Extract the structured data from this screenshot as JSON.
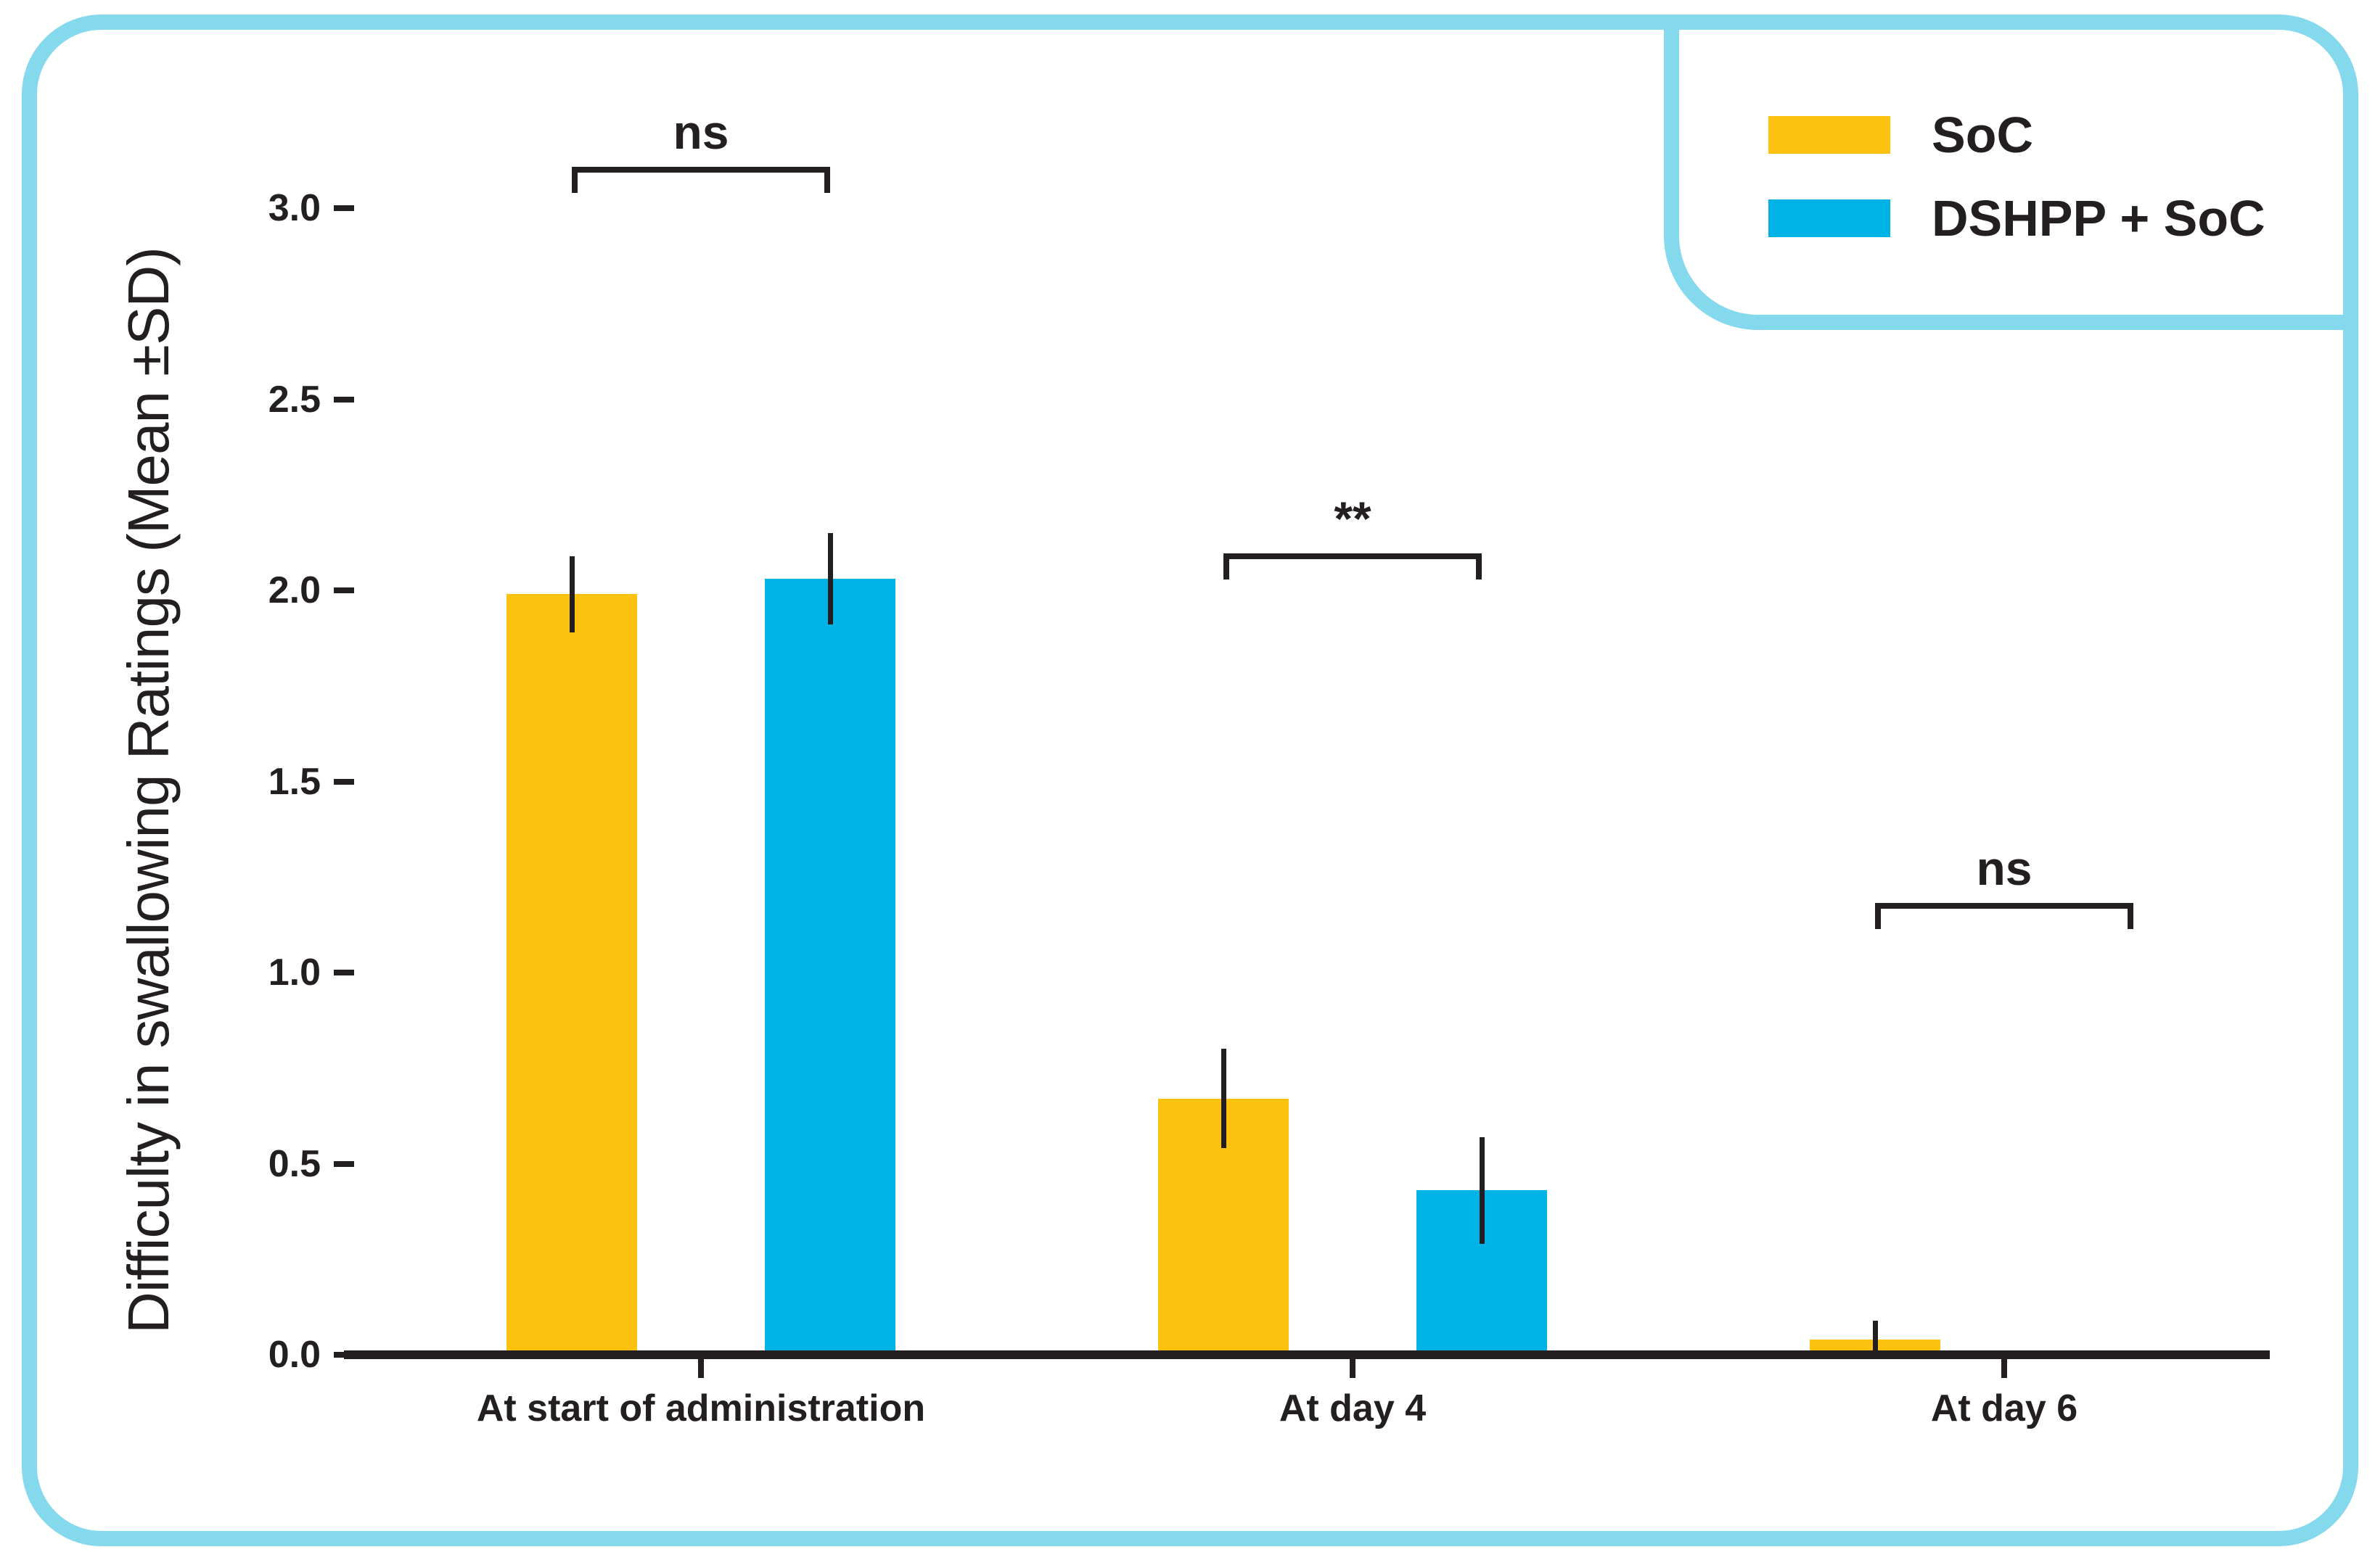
{
  "figure": {
    "frame_color": "#85D9EC",
    "background": "#FFFFFF",
    "text_color": "#231F20"
  },
  "chart_data": {
    "type": "bar",
    "title": "",
    "xlabel": "",
    "ylabel": "Difficulty in swallowing Ratings (Mean ±SD)",
    "categories": [
      "At start of administration",
      "At day 4",
      "At day 6"
    ],
    "yticks": [
      "0.0",
      "0.5",
      "1.0",
      "1.5",
      "2.0",
      "2.5",
      "3.0"
    ],
    "ylim": [
      0,
      3.0
    ],
    "grid": false,
    "legend_position": "top-right",
    "error_bars": "±SD",
    "series": [
      {
        "name": "SoC",
        "color": "#FDC110",
        "values": [
          1.99,
          0.67,
          0.04
        ],
        "sd": [
          0.1,
          0.13,
          0.05
        ]
      },
      {
        "name": "DSHPP + SoC",
        "color": "#00B3E6",
        "values": [
          2.03,
          0.43,
          0.0
        ],
        "sd": [
          0.12,
          0.14,
          0.0
        ]
      }
    ],
    "significance": [
      {
        "group": "At start of administration",
        "label": "ns"
      },
      {
        "group": "At day 4",
        "label": "**"
      },
      {
        "group": "At day 6",
        "label": "ns"
      }
    ]
  }
}
